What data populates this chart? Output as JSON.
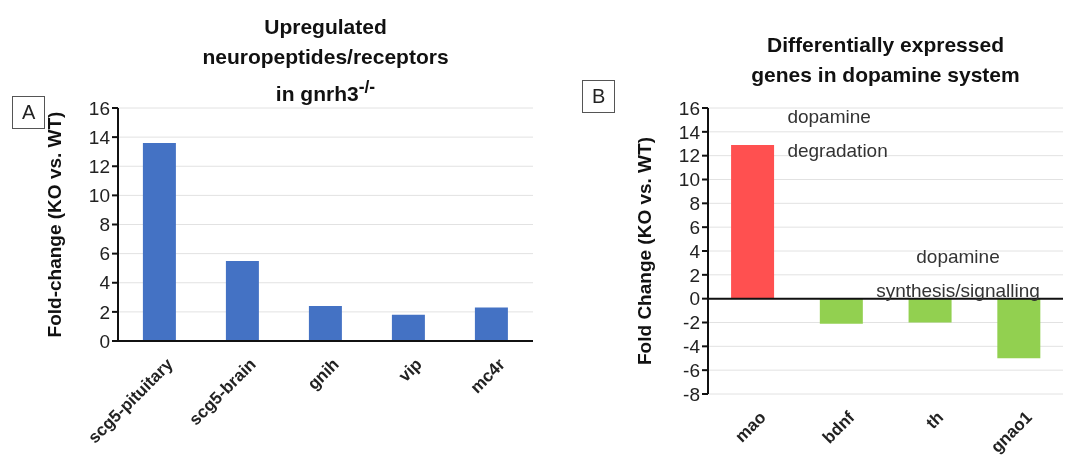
{
  "chart_data": [
    {
      "type": "bar",
      "title": "Upregulated neuropeptides/receptors in gnrh3$^{-/-}$",
      "ylabel": "Fold-change (KO vs. WT)",
      "categories": [
        "scg5-pituitary",
        "scg5-brain",
        "gnih",
        "vip",
        "mc4r"
      ],
      "values": [
        13.6,
        5.5,
        2.4,
        1.8,
        2.3
      ],
      "color": "#4472c4",
      "ylim": [
        0,
        16
      ],
      "yticks": [
        0,
        2,
        4,
        6,
        8,
        10,
        12,
        14,
        16
      ],
      "grid": "y",
      "annotations": [
        "A"
      ]
    },
    {
      "type": "bar",
      "title": "Differentially expressed genes in dopamine system",
      "ylabel": "Fold Change (KO vs. WT)",
      "categories": [
        "mao",
        "bdnf",
        "th",
        "gnao1"
      ],
      "values": [
        12.9,
        -2.1,
        -2.0,
        -5.0
      ],
      "colors": [
        "#ff5050",
        "#92d050",
        "#92d050",
        "#92d050"
      ],
      "ylim": [
        -8,
        16
      ],
      "yticks": [
        -8,
        -6,
        -4,
        -2,
        0,
        2,
        4,
        6,
        8,
        10,
        12,
        14,
        16
      ],
      "grid": "y",
      "annotations": [
        "B",
        {
          "text": "dopamine degradation",
          "x": "mao",
          "y": 12.9
        },
        "dopamine synthesis/signalling"
      ]
    }
  ]
}
